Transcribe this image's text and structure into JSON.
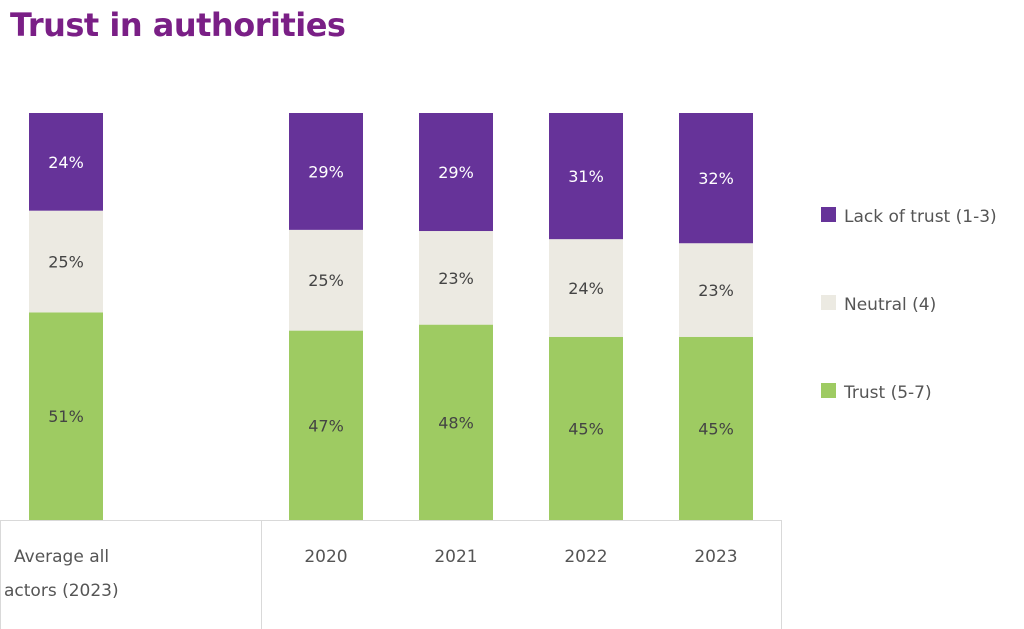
{
  "chart_data": {
    "type": "bar",
    "stacked": true,
    "title": "Trust in authorities",
    "categories": [
      "Average all actors (2023)",
      "2020",
      "2021",
      "2022",
      "2023"
    ],
    "category_lines": [
      [
        "Average all",
        "actors (2023)"
      ],
      [
        "2020"
      ],
      [
        "2021"
      ],
      [
        "2022"
      ],
      [
        "2023"
      ]
    ],
    "series": [
      {
        "name": "Trust (5-7)",
        "color": "#9ecb62",
        "values": [
          51,
          47,
          48,
          45,
          45
        ]
      },
      {
        "name": "Neutral (4)",
        "color": "#eceae2",
        "values": [
          25,
          25,
          23,
          24,
          23
        ]
      },
      {
        "name": "Lack of trust (1-3)",
        "color": "#663399",
        "values": [
          24,
          29,
          29,
          31,
          32
        ]
      }
    ],
    "legend_order": [
      "Lack of trust (1-3)",
      "Neutral (4)",
      "Trust (5-7)"
    ],
    "value_suffix": "%",
    "legend_position": "right",
    "ylim": [
      0,
      100
    ],
    "grid": false
  }
}
